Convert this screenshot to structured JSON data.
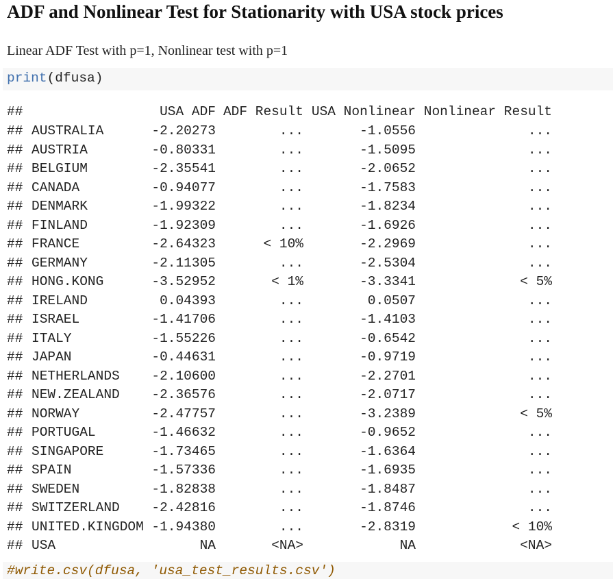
{
  "header": {
    "title": "ADF and Nonlinear Test for Stationarity with USA stock prices"
  },
  "subtitle": "Linear ADF Test with p=1, Nonlinear test with p=1",
  "code": {
    "function": "print",
    "args": "(dfusa)"
  },
  "output": {
    "prompt": "##",
    "columns": [
      "USA ADF",
      "ADF Result",
      "USA Nonlinear",
      "Nonlinear Result"
    ],
    "rows": [
      [
        "AUSTRALIA",
        "-2.20273",
        "...",
        "-1.0556",
        "..."
      ],
      [
        "AUSTRIA",
        "-0.80331",
        "...",
        "-1.5095",
        "..."
      ],
      [
        "BELGIUM",
        "-2.35541",
        "...",
        "-2.0652",
        "..."
      ],
      [
        "CANADA",
        "-0.94077",
        "...",
        "-1.7583",
        "..."
      ],
      [
        "DENMARK",
        "-1.99322",
        "...",
        "-1.8234",
        "..."
      ],
      [
        "FINLAND",
        "-1.92309",
        "...",
        "-1.6926",
        "..."
      ],
      [
        "FRANCE",
        "-2.64323",
        "< 10%",
        "-2.2969",
        "..."
      ],
      [
        "GERMANY",
        "-2.11305",
        "...",
        "-2.5304",
        "..."
      ],
      [
        "HONG.KONG",
        "-3.52952",
        "< 1%",
        "-3.3341",
        "< 5%"
      ],
      [
        "IRELAND",
        "0.04393",
        "...",
        "0.0507",
        "..."
      ],
      [
        "ISRAEL",
        "-1.41706",
        "...",
        "-1.4103",
        "..."
      ],
      [
        "ITALY",
        "-1.55226",
        "...",
        "-0.6542",
        "..."
      ],
      [
        "JAPAN",
        "-0.44631",
        "...",
        "-0.9719",
        "..."
      ],
      [
        "NETHERLANDS",
        "-2.10600",
        "...",
        "-2.2701",
        "..."
      ],
      [
        "NEW.ZEALAND",
        "-2.36576",
        "...",
        "-2.0717",
        "..."
      ],
      [
        "NORWAY",
        "-2.47757",
        "...",
        "-3.2389",
        "< 5%"
      ],
      [
        "PORTUGAL",
        "-1.46632",
        "...",
        "-0.9652",
        "..."
      ],
      [
        "SINGAPORE",
        "-1.73465",
        "...",
        "-1.6364",
        "..."
      ],
      [
        "SPAIN",
        "-1.57336",
        "...",
        "-1.6935",
        "..."
      ],
      [
        "SWEDEN",
        "-1.82838",
        "...",
        "-1.8487",
        "..."
      ],
      [
        "SWITZERLAND",
        "-2.42816",
        "...",
        "-1.8746",
        "..."
      ],
      [
        "UNITED.KINGDOM",
        "-1.94380",
        "...",
        "-2.8319",
        "< 10%"
      ],
      [
        "USA",
        "NA",
        "<NA>",
        "NA",
        "<NA>"
      ]
    ]
  },
  "comment": "#write.csv(dfusa, 'usa_test_results.csv')"
}
